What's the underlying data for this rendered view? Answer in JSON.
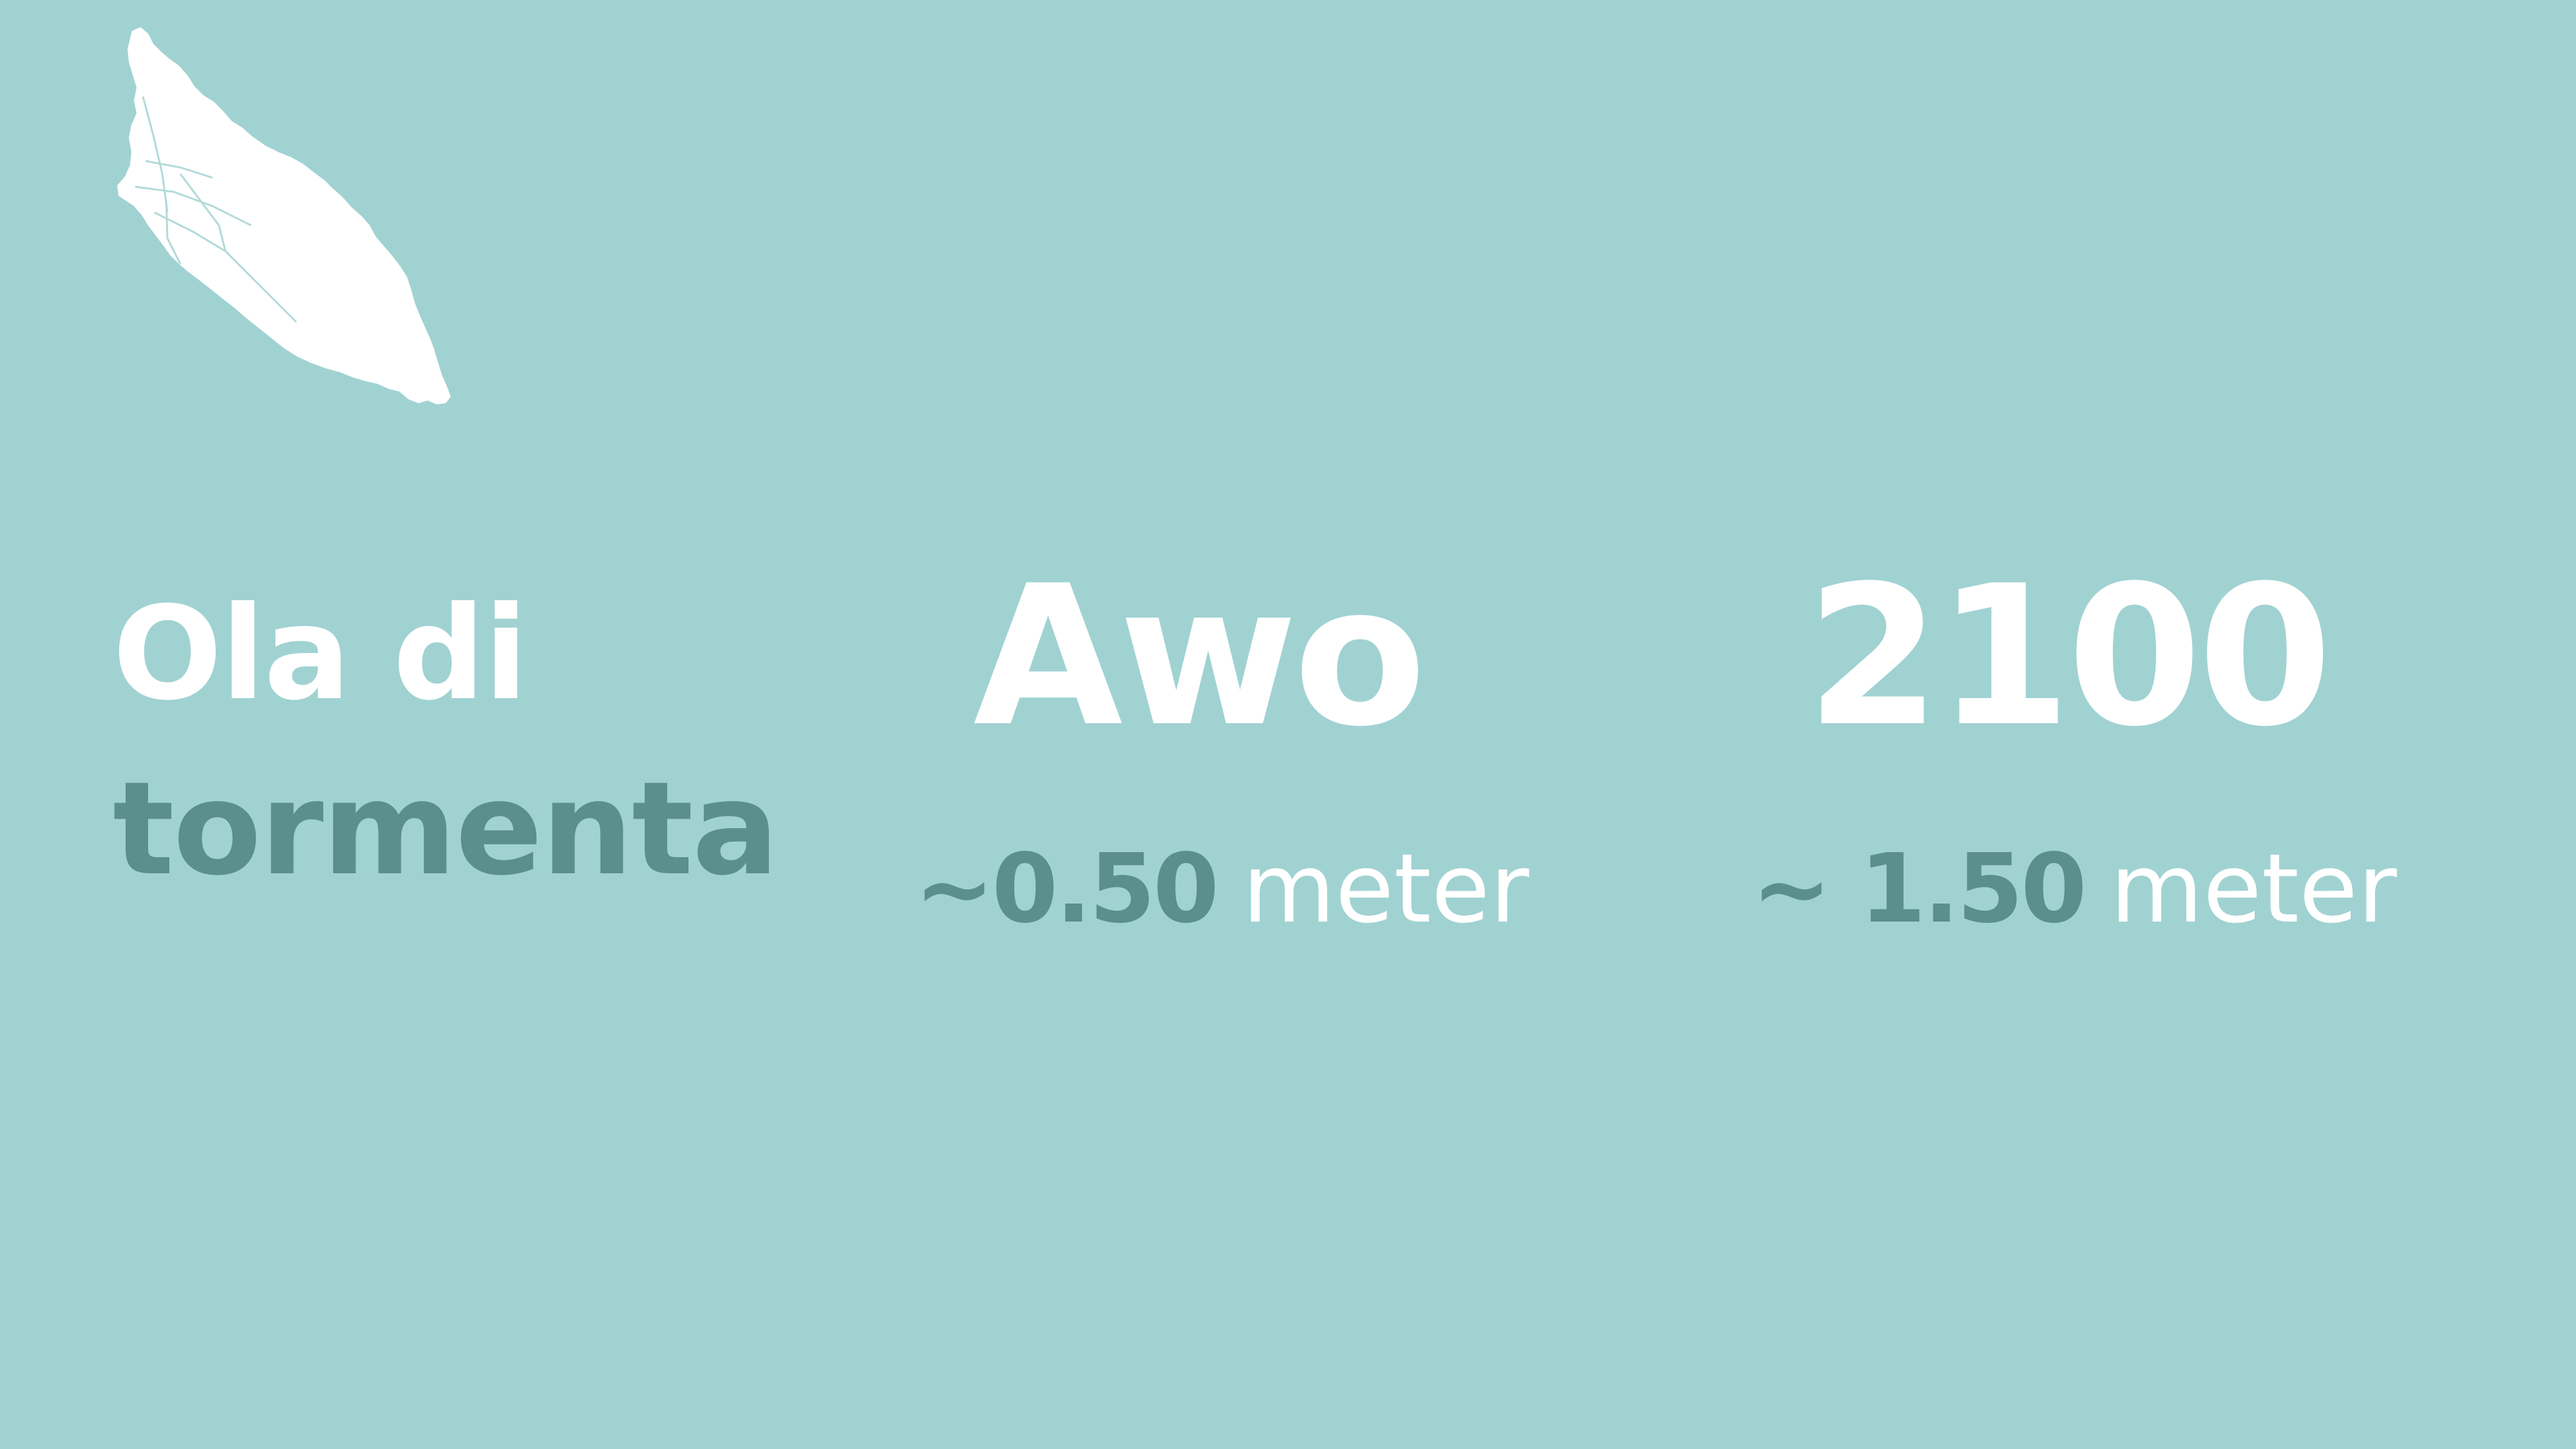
{
  "title": {
    "line1": "Ola di",
    "line2": "tormenta"
  },
  "now": {
    "label": "Awo",
    "approx": "~",
    "value": "0.50",
    "unit": "meter"
  },
  "future": {
    "label": "2100",
    "approx": "~ ",
    "value": "1.50",
    "unit": "meter"
  },
  "colors": {
    "background": "#a1d2d2",
    "accent": "#5b8f8d",
    "text": "#ffffff"
  },
  "icons": {
    "map": "aruba-island-map-icon"
  }
}
